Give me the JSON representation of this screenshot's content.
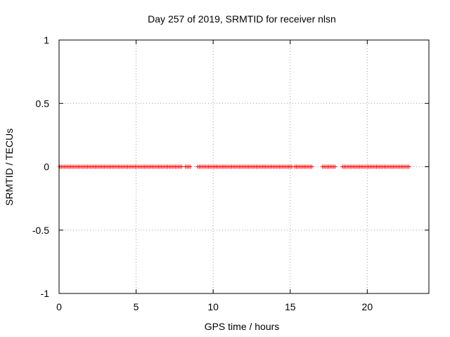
{
  "chart_data": {
    "type": "scatter",
    "title": "Day 257 of 2019, SRMTID for receiver nlsn",
    "xlabel": "GPS time / hours",
    "ylabel": "SRMTID / TECUs",
    "xlim": [
      0,
      24
    ],
    "ylim": [
      -1,
      1
    ],
    "xticks": [
      0,
      5,
      10,
      15,
      20
    ],
    "xtick_labels": [
      "0",
      "5",
      "10",
      "15",
      "20"
    ],
    "yticks": [
      -1,
      -0.5,
      0,
      0.5,
      1
    ],
    "ytick_labels": [
      "-1",
      "-0.5",
      "0",
      "0.5",
      "1"
    ],
    "grid": true,
    "marker": "+",
    "series": [
      {
        "name": "SRMTID",
        "color": "#ff0000",
        "segments": [
          {
            "start": 0.05,
            "end": 7.9,
            "step": 0.1,
            "y": 0
          },
          {
            "start": 8.2,
            "end": 8.5,
            "step": 0.1,
            "y": 0
          },
          {
            "start": 9.0,
            "end": 15.1,
            "step": 0.1,
            "y": 0
          },
          {
            "start": 15.3,
            "end": 16.4,
            "step": 0.1,
            "y": 0
          },
          {
            "start": 17.1,
            "end": 17.9,
            "step": 0.1,
            "y": 0
          },
          {
            "start": 18.4,
            "end": 22.7,
            "step": 0.1,
            "y": 0
          }
        ]
      }
    ]
  }
}
